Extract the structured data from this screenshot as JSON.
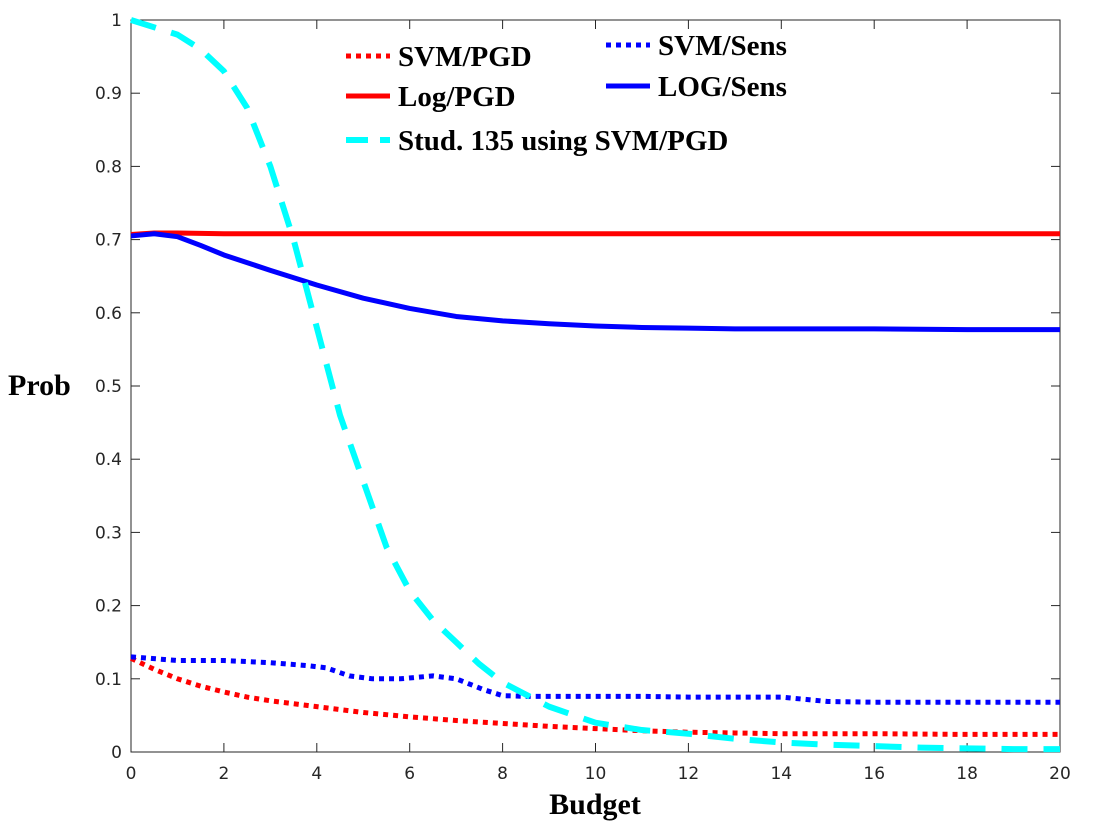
{
  "chart_data": {
    "type": "line",
    "title": "",
    "xlabel": "Budget",
    "ylabel": "Prob",
    "xlim": [
      0,
      20
    ],
    "ylim": [
      0,
      1
    ],
    "x_ticks": [
      "0",
      "2",
      "4",
      "6",
      "8",
      "10",
      "12",
      "14",
      "16",
      "18",
      "20"
    ],
    "y_ticks": [
      "0",
      "0.1",
      "0.2",
      "0.3",
      "0.4",
      "0.5",
      "0.6",
      "0.7",
      "0.8",
      "0.9",
      "1"
    ],
    "grid": false,
    "legend_position": "top-center",
    "series": [
      {
        "name": "SVM/PGD",
        "color": "#ff0000",
        "style": "dotted",
        "points": [
          [
            0,
            0.128
          ],
          [
            0.5,
            0.113
          ],
          [
            1,
            0.1
          ],
          [
            1.5,
            0.09
          ],
          [
            2,
            0.082
          ],
          [
            2.5,
            0.075
          ],
          [
            3,
            0.07
          ],
          [
            3.5,
            0.066
          ],
          [
            4,
            0.062
          ],
          [
            5,
            0.054
          ],
          [
            6,
            0.048
          ],
          [
            7,
            0.043
          ],
          [
            8,
            0.039
          ],
          [
            9,
            0.035
          ],
          [
            10,
            0.032
          ],
          [
            11,
            0.029
          ],
          [
            12,
            0.027
          ],
          [
            13,
            0.026
          ],
          [
            14,
            0.025
          ],
          [
            16,
            0.025
          ],
          [
            18,
            0.024
          ],
          [
            20,
            0.024
          ]
        ]
      },
      {
        "name": "SVM/Sens",
        "color": "#0000ff",
        "style": "dotted",
        "points": [
          [
            0,
            0.13
          ],
          [
            1,
            0.125
          ],
          [
            2,
            0.125
          ],
          [
            3,
            0.122
          ],
          [
            3.8,
            0.118
          ],
          [
            4.2,
            0.115
          ],
          [
            4.7,
            0.104
          ],
          [
            5.2,
            0.1
          ],
          [
            5.8,
            0.1
          ],
          [
            6.5,
            0.104
          ],
          [
            7,
            0.1
          ],
          [
            7.6,
            0.085
          ],
          [
            8,
            0.077
          ],
          [
            8.5,
            0.076
          ],
          [
            10,
            0.076
          ],
          [
            11,
            0.076
          ],
          [
            12,
            0.075
          ],
          [
            13,
            0.075
          ],
          [
            14,
            0.075
          ],
          [
            14.5,
            0.072
          ],
          [
            15,
            0.069
          ],
          [
            16,
            0.068
          ],
          [
            17,
            0.068
          ],
          [
            18,
            0.068
          ],
          [
            19,
            0.068
          ],
          [
            20,
            0.068
          ]
        ]
      },
      {
        "name": "Log/PGD",
        "color": "#ff0000",
        "style": "solid",
        "points": [
          [
            0,
            0.707
          ],
          [
            0.5,
            0.709
          ],
          [
            1,
            0.709
          ],
          [
            2,
            0.708
          ],
          [
            4,
            0.708
          ],
          [
            6,
            0.708
          ],
          [
            8,
            0.708
          ],
          [
            10,
            0.708
          ],
          [
            12,
            0.708
          ],
          [
            14,
            0.708
          ],
          [
            16,
            0.708
          ],
          [
            18,
            0.708
          ],
          [
            20,
            0.708
          ]
        ]
      },
      {
        "name": "LOG/Sens",
        "color": "#0000ff",
        "style": "solid",
        "points": [
          [
            0,
            0.705
          ],
          [
            0.5,
            0.708
          ],
          [
            1,
            0.704
          ],
          [
            1.5,
            0.692
          ],
          [
            2,
            0.679
          ],
          [
            3,
            0.658
          ],
          [
            4,
            0.638
          ],
          [
            5,
            0.62
          ],
          [
            6,
            0.606
          ],
          [
            7,
            0.595
          ],
          [
            8,
            0.589
          ],
          [
            9,
            0.585
          ],
          [
            10,
            0.582
          ],
          [
            11,
            0.58
          ],
          [
            12,
            0.579
          ],
          [
            13,
            0.578
          ],
          [
            14,
            0.578
          ],
          [
            16,
            0.578
          ],
          [
            18,
            0.577
          ],
          [
            20,
            0.577
          ]
        ]
      },
      {
        "name": "Stud. 135 using SVM/PGD",
        "color": "#00ffff",
        "style": "dashed",
        "points": [
          [
            0,
            1.0
          ],
          [
            0.5,
            0.99
          ],
          [
            1,
            0.98
          ],
          [
            1.5,
            0.96
          ],
          [
            2,
            0.93
          ],
          [
            2.5,
            0.88
          ],
          [
            3,
            0.8
          ],
          [
            3.5,
            0.7
          ],
          [
            4,
            0.58
          ],
          [
            4.5,
            0.46
          ],
          [
            5,
            0.37
          ],
          [
            5.5,
            0.28
          ],
          [
            6,
            0.22
          ],
          [
            6.5,
            0.18
          ],
          [
            7,
            0.15
          ],
          [
            7.5,
            0.12
          ],
          [
            8,
            0.095
          ],
          [
            9,
            0.062
          ],
          [
            10,
            0.04
          ],
          [
            11,
            0.03
          ],
          [
            12,
            0.025
          ],
          [
            13,
            0.018
          ],
          [
            14,
            0.013
          ],
          [
            15,
            0.01
          ],
          [
            16,
            0.008
          ],
          [
            17,
            0.006
          ],
          [
            18,
            0.005
          ],
          [
            19,
            0.004
          ],
          [
            20,
            0.004
          ]
        ]
      }
    ]
  }
}
